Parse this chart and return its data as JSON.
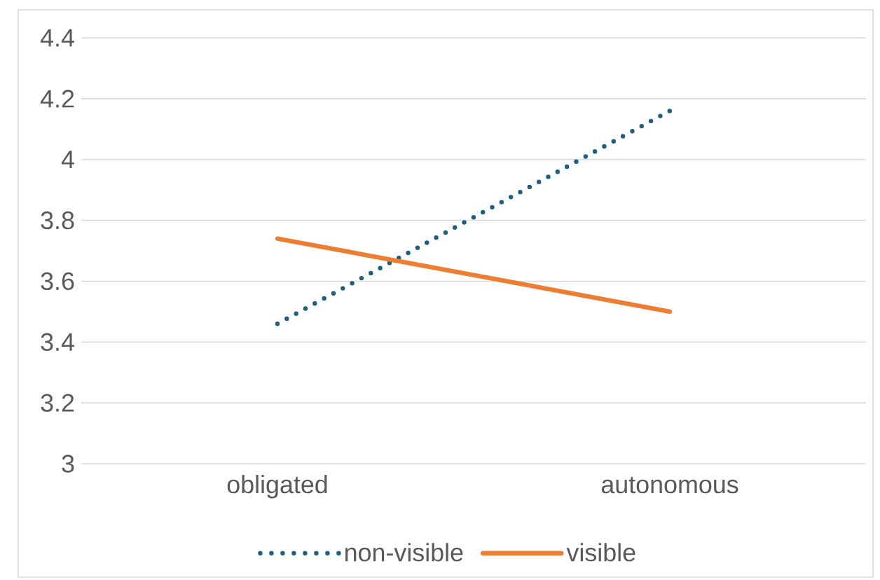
{
  "chart_data": {
    "type": "line",
    "categories": [
      "obligated",
      "autonomous"
    ],
    "series": [
      {
        "name": "non-visible",
        "color": "#1f5f7f",
        "values": [
          3.46,
          4.16
        ],
        "line_style": "dotted"
      },
      {
        "name": "visible",
        "color": "#ed7d31",
        "values": [
          3.74,
          3.5
        ],
        "line_style": "solid"
      }
    ],
    "ylim": [
      3,
      4.4
    ],
    "yticks": [
      3,
      3.2,
      3.4,
      3.6,
      3.8,
      4,
      4.2,
      4.4
    ],
    "grid": "y",
    "legend": "bottom",
    "marker": "none"
  }
}
